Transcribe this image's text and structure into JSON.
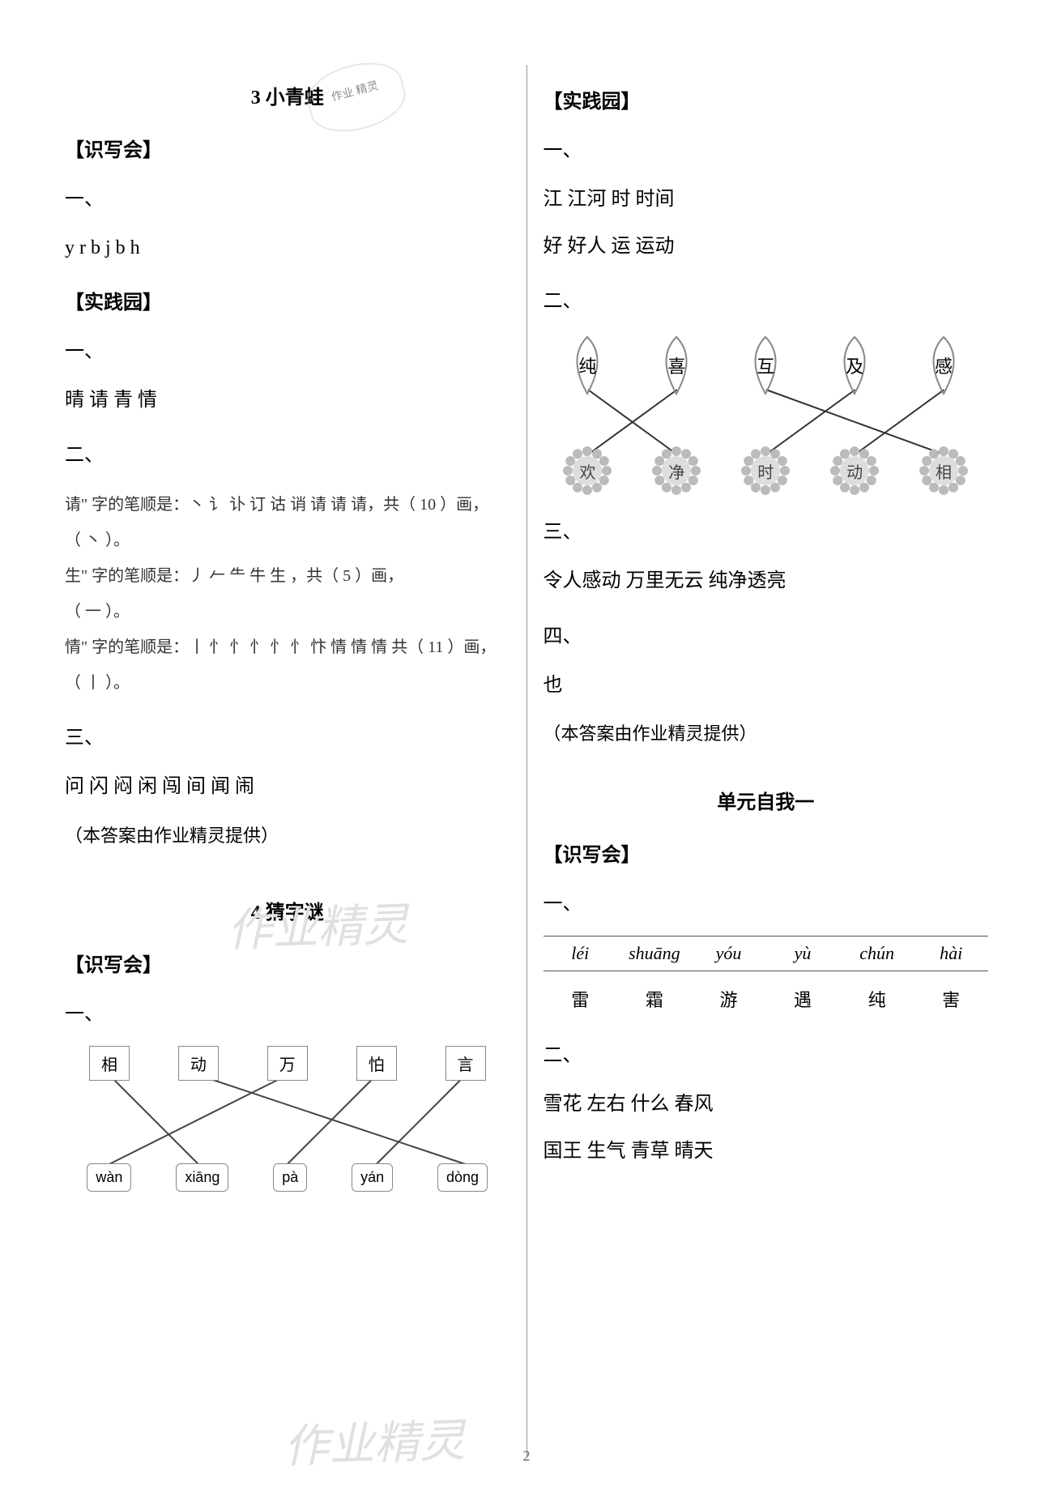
{
  "watermark_text": "作业精灵",
  "stamp_text": "作业\n精灵",
  "page_number": "2",
  "left": {
    "lesson3": {
      "title": "3 小青蛙",
      "shixie_heading": "【识写会】",
      "h1": "一、",
      "pinyin_letters": "y r b j b h",
      "shijian_heading": "【实践园】",
      "s1": "一、",
      "s1_text": "晴 请 青 情",
      "s2": "二、",
      "stroke_lines": {
        "l1": "请\" 字的笔顺是：丶 讠 讣 订 诂 诮 请 请 请，共（ 10 ）画，",
        "l1b": "（ 丶 ）。",
        "l2": "生\" 字的笔顺是：丿 𠂉 ⺧ 牛 生        ，共（ 5 ）画，",
        "l2b": "（ 一 ）。",
        "l3": "情\" 字的笔顺是：丨 忄 忄 忄 忄 忄 忭 情 情 情 共（ 11 ）画，",
        "l3b": "（ 丨 ）。"
      },
      "s3": "三、",
      "s3_text": "问 闪 闷 闲 闯 间 闻 闹",
      "note": "（本答案由作业精灵提供）"
    },
    "lesson4": {
      "title": "4 猜字谜",
      "shixie_heading": "【识写会】",
      "h1": "一、",
      "match": {
        "top": [
          "相",
          "动",
          "万",
          "怕",
          "言"
        ],
        "bot": [
          "wàn",
          "xiāng",
          "pà",
          "yán",
          "dòng"
        ],
        "lines": [
          [
            0,
            1
          ],
          [
            1,
            4
          ],
          [
            2,
            0
          ],
          [
            3,
            2
          ],
          [
            4,
            3
          ]
        ],
        "line_color": "#444444"
      }
    }
  },
  "right": {
    "shijian_heading": "【实践园】",
    "r1": "一、",
    "r1_lines": [
      "江 江河     时 时间",
      "好 好人     运 运动"
    ],
    "r2": "二、",
    "leafmatch": {
      "leaves": [
        "纯",
        "喜",
        "互",
        "及",
        "感"
      ],
      "flowers": [
        "欢",
        "净",
        "时",
        "动",
        "相"
      ],
      "lines": [
        [
          0,
          1
        ],
        [
          1,
          0
        ],
        [
          2,
          4
        ],
        [
          3,
          2
        ],
        [
          4,
          3
        ]
      ],
      "line_color": "#333333"
    },
    "r3": "三、",
    "r3_text": "令人感动 万里无云 纯净透亮",
    "r4": "四、",
    "r4_text": "也",
    "note": "（本答案由作业精灵提供）",
    "unit_title": "单元自我一",
    "shixie_heading2": "【识写会】",
    "u1": "一、",
    "pinyin_table": {
      "py": [
        "léi",
        "shuāng",
        "yóu",
        "yù",
        "chún",
        "hài"
      ],
      "hz": [
        "雷",
        "霜",
        "游",
        "遇",
        "纯",
        "害"
      ]
    },
    "u2": "二、",
    "u2_line1": "雪花 左右 什么 春风",
    "u2_line2": "国王 生气 青草 晴天"
  }
}
